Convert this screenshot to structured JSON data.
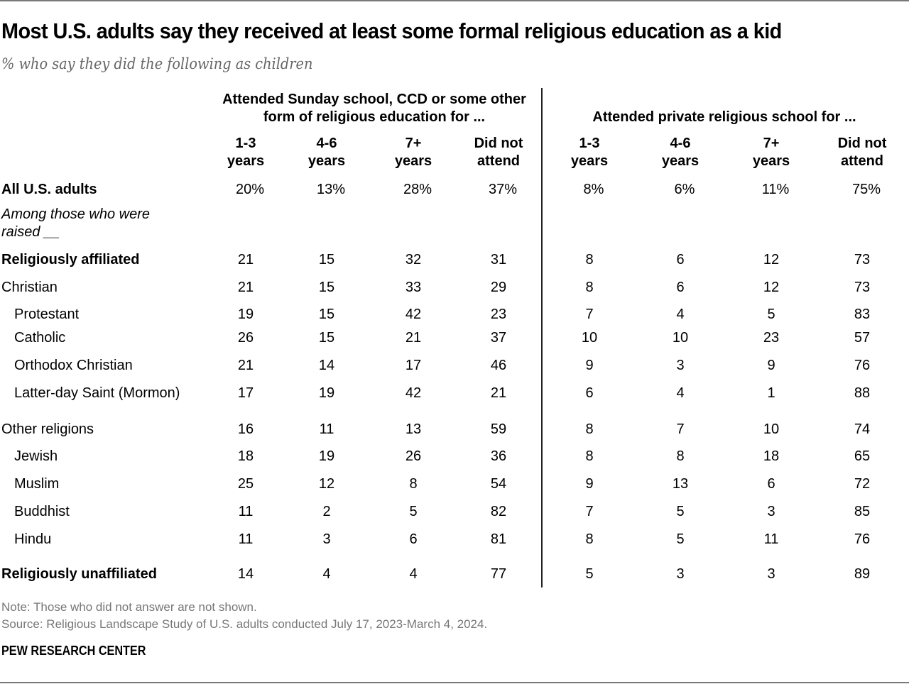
{
  "title": "Most U.S. adults say they received at least some formal religious education as a kid",
  "subtitle": "% who say they did the following as children",
  "chart_data": {
    "type": "table",
    "groups": [
      {
        "label_line1": "Attended Sunday school, CCD or some other",
        "label_line2": "form of religious education for ..."
      },
      {
        "label_line1": "Attended private religious school for ...",
        "label_line2": ""
      }
    ],
    "columns": [
      {
        "l1": "1-3",
        "l2": "years"
      },
      {
        "l1": "4-6",
        "l2": "years"
      },
      {
        "l1": "7+",
        "l2": "years"
      },
      {
        "l1": "Did not",
        "l2": "attend"
      },
      {
        "l1": "1-3",
        "l2": "years"
      },
      {
        "l1": "4-6",
        "l2": "years"
      },
      {
        "l1": "7+",
        "l2": "years"
      },
      {
        "l1": "Did not",
        "l2": "attend"
      }
    ],
    "note_row": {
      "line1": "Among those who were",
      "line2": "raised __"
    },
    "rows": [
      {
        "label": "All U.S. adults",
        "style": "bold",
        "values": [
          "20%",
          "13%",
          "28%",
          "37%",
          "8%",
          "6%",
          "11%",
          "75%"
        ]
      },
      {
        "label": "Religiously affiliated",
        "style": "bold",
        "values": [
          "21",
          "15",
          "32",
          "31",
          "8",
          "6",
          "12",
          "73"
        ]
      },
      {
        "label": "Christian",
        "style": "normal",
        "values": [
          "21",
          "15",
          "33",
          "29",
          "8",
          "6",
          "12",
          "73"
        ]
      },
      {
        "label": "Protestant",
        "style": "indent",
        "values": [
          "19",
          "15",
          "42",
          "23",
          "7",
          "4",
          "5",
          "83"
        ]
      },
      {
        "label": "Catholic",
        "style": "indent",
        "values": [
          "26",
          "15",
          "21",
          "37",
          "10",
          "10",
          "23",
          "57"
        ]
      },
      {
        "label": "Orthodox Christian",
        "style": "indent",
        "values": [
          "21",
          "14",
          "17",
          "46",
          "9",
          "3",
          "9",
          "76"
        ]
      },
      {
        "label": "Latter-day Saint (Mormon)",
        "style": "indent",
        "values": [
          "17",
          "19",
          "42",
          "21",
          "6",
          "4",
          "1",
          "88"
        ]
      },
      {
        "label": "Other religions",
        "style": "normal",
        "values": [
          "16",
          "11",
          "13",
          "59",
          "8",
          "7",
          "10",
          "74"
        ]
      },
      {
        "label": "Jewish",
        "style": "indent",
        "values": [
          "18",
          "19",
          "26",
          "36",
          "8",
          "8",
          "18",
          "65"
        ]
      },
      {
        "label": "Muslim",
        "style": "indent",
        "values": [
          "25",
          "12",
          "8",
          "54",
          "9",
          "13",
          "6",
          "72"
        ]
      },
      {
        "label": "Buddhist",
        "style": "indent",
        "values": [
          "11",
          "2",
          "5",
          "82",
          "7",
          "5",
          "3",
          "85"
        ]
      },
      {
        "label": "Hindu",
        "style": "indent",
        "values": [
          "11",
          "3",
          "6",
          "81",
          "8",
          "5",
          "11",
          "76"
        ]
      },
      {
        "label": "Religiously unaffiliated",
        "style": "bold",
        "values": [
          "14",
          "4",
          "4",
          "77",
          "5",
          "3",
          "3",
          "89"
        ]
      }
    ]
  },
  "note": "Note: Those who did not answer are not shown.",
  "source": "Source: Religious Landscape Study of U.S. adults conducted July 17, 2023-March 4, 2024.",
  "brand": "PEW RESEARCH CENTER"
}
